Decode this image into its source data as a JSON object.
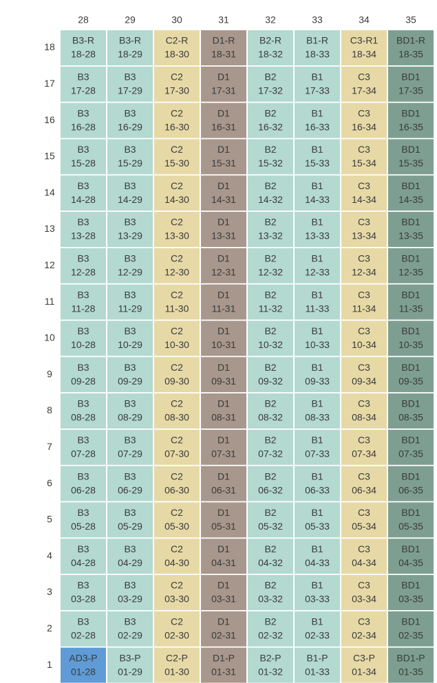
{
  "columns": [
    "28",
    "29",
    "30",
    "31",
    "32",
    "33",
    "34",
    "35"
  ],
  "column_colors": [
    "#b3d9d0",
    "#b3d9d0",
    "#e6d9a6",
    "#a8978c",
    "#b3d9d0",
    "#b3d9d0",
    "#e6d9a6",
    "#7e9e92"
  ],
  "rows": [
    {
      "label": "18",
      "cells": [
        [
          "B3-R",
          "18-28"
        ],
        [
          "B3-R",
          "18-29"
        ],
        [
          "C2-R",
          "18-30"
        ],
        [
          "D1-R",
          "18-31"
        ],
        [
          "B2-R",
          "18-32"
        ],
        [
          "B1-R",
          "18-33"
        ],
        [
          "C3-R1",
          "18-34"
        ],
        [
          "BD1-R",
          "18-35"
        ]
      ]
    },
    {
      "label": "17",
      "cells": [
        [
          "B3",
          "17-28"
        ],
        [
          "B3",
          "17-29"
        ],
        [
          "C2",
          "17-30"
        ],
        [
          "D1",
          "17-31"
        ],
        [
          "B2",
          "17-32"
        ],
        [
          "B1",
          "17-33"
        ],
        [
          "C3",
          "17-34"
        ],
        [
          "BD1",
          "17-35"
        ]
      ]
    },
    {
      "label": "16",
      "cells": [
        [
          "B3",
          "16-28"
        ],
        [
          "B3",
          "16-29"
        ],
        [
          "C2",
          "16-30"
        ],
        [
          "D1",
          "16-31"
        ],
        [
          "B2",
          "16-32"
        ],
        [
          "B1",
          "16-33"
        ],
        [
          "C3",
          "16-34"
        ],
        [
          "BD1",
          "16-35"
        ]
      ]
    },
    {
      "label": "15",
      "cells": [
        [
          "B3",
          "15-28"
        ],
        [
          "B3",
          "15-29"
        ],
        [
          "C2",
          "15-30"
        ],
        [
          "D1",
          "15-31"
        ],
        [
          "B2",
          "15-32"
        ],
        [
          "B1",
          "15-33"
        ],
        [
          "C3",
          "15-34"
        ],
        [
          "BD1",
          "15-35"
        ]
      ]
    },
    {
      "label": "14",
      "cells": [
        [
          "B3",
          "14-28"
        ],
        [
          "B3",
          "14-29"
        ],
        [
          "C2",
          "14-30"
        ],
        [
          "D1",
          "14-31"
        ],
        [
          "B2",
          "14-32"
        ],
        [
          "B1",
          "14-33"
        ],
        [
          "C3",
          "14-34"
        ],
        [
          "BD1",
          "14-35"
        ]
      ]
    },
    {
      "label": "13",
      "cells": [
        [
          "B3",
          "13-28"
        ],
        [
          "B3",
          "13-29"
        ],
        [
          "C2",
          "13-30"
        ],
        [
          "D1",
          "13-31"
        ],
        [
          "B2",
          "13-32"
        ],
        [
          "B1",
          "13-33"
        ],
        [
          "C3",
          "13-34"
        ],
        [
          "BD1",
          "13-35"
        ]
      ]
    },
    {
      "label": "12",
      "cells": [
        [
          "B3",
          "12-28"
        ],
        [
          "B3",
          "12-29"
        ],
        [
          "C2",
          "12-30"
        ],
        [
          "D1",
          "12-31"
        ],
        [
          "B2",
          "12-32"
        ],
        [
          "B1",
          "12-33"
        ],
        [
          "C3",
          "12-34"
        ],
        [
          "BD1",
          "12-35"
        ]
      ]
    },
    {
      "label": "11",
      "cells": [
        [
          "B3",
          "11-28"
        ],
        [
          "B3",
          "11-29"
        ],
        [
          "C2",
          "11-30"
        ],
        [
          "D1",
          "11-31"
        ],
        [
          "B2",
          "11-32"
        ],
        [
          "B1",
          "11-33"
        ],
        [
          "C3",
          "11-34"
        ],
        [
          "BD1",
          "11-35"
        ]
      ]
    },
    {
      "label": "10",
      "cells": [
        [
          "B3",
          "10-28"
        ],
        [
          "B3",
          "10-29"
        ],
        [
          "C2",
          "10-30"
        ],
        [
          "D1",
          "10-31"
        ],
        [
          "B2",
          "10-32"
        ],
        [
          "B1",
          "10-33"
        ],
        [
          "C3",
          "10-34"
        ],
        [
          "BD1",
          "10-35"
        ]
      ]
    },
    {
      "label": "9",
      "cells": [
        [
          "B3",
          "09-28"
        ],
        [
          "B3",
          "09-29"
        ],
        [
          "C2",
          "09-30"
        ],
        [
          "D1",
          "09-31"
        ],
        [
          "B2",
          "09-32"
        ],
        [
          "B1",
          "09-33"
        ],
        [
          "C3",
          "09-34"
        ],
        [
          "BD1",
          "09-35"
        ]
      ]
    },
    {
      "label": "8",
      "cells": [
        [
          "B3",
          "08-28"
        ],
        [
          "B3",
          "08-29"
        ],
        [
          "C2",
          "08-30"
        ],
        [
          "D1",
          "08-31"
        ],
        [
          "B2",
          "08-32"
        ],
        [
          "B1",
          "08-33"
        ],
        [
          "C3",
          "08-34"
        ],
        [
          "BD1",
          "08-35"
        ]
      ]
    },
    {
      "label": "7",
      "cells": [
        [
          "B3",
          "07-28"
        ],
        [
          "B3",
          "07-29"
        ],
        [
          "C2",
          "07-30"
        ],
        [
          "D1",
          "07-31"
        ],
        [
          "B2",
          "07-32"
        ],
        [
          "B1",
          "07-33"
        ],
        [
          "C3",
          "07-34"
        ],
        [
          "BD1",
          "07-35"
        ]
      ]
    },
    {
      "label": "6",
      "cells": [
        [
          "B3",
          "06-28"
        ],
        [
          "B3",
          "06-29"
        ],
        [
          "C2",
          "06-30"
        ],
        [
          "D1",
          "06-31"
        ],
        [
          "B2",
          "06-32"
        ],
        [
          "B1",
          "06-33"
        ],
        [
          "C3",
          "06-34"
        ],
        [
          "BD1",
          "06-35"
        ]
      ]
    },
    {
      "label": "5",
      "cells": [
        [
          "B3",
          "05-28"
        ],
        [
          "B3",
          "05-29"
        ],
        [
          "C2",
          "05-30"
        ],
        [
          "D1",
          "05-31"
        ],
        [
          "B2",
          "05-32"
        ],
        [
          "B1",
          "05-33"
        ],
        [
          "C3",
          "05-34"
        ],
        [
          "BD1",
          "05-35"
        ]
      ]
    },
    {
      "label": "4",
      "cells": [
        [
          "B3",
          "04-28"
        ],
        [
          "B3",
          "04-29"
        ],
        [
          "C2",
          "04-30"
        ],
        [
          "D1",
          "04-31"
        ],
        [
          "B2",
          "04-32"
        ],
        [
          "B1",
          "04-33"
        ],
        [
          "C3",
          "04-34"
        ],
        [
          "BD1",
          "04-35"
        ]
      ]
    },
    {
      "label": "3",
      "cells": [
        [
          "B3",
          "03-28"
        ],
        [
          "B3",
          "03-29"
        ],
        [
          "C2",
          "03-30"
        ],
        [
          "D1",
          "03-31"
        ],
        [
          "B2",
          "03-32"
        ],
        [
          "B1",
          "03-33"
        ],
        [
          "C3",
          "03-34"
        ],
        [
          "BD1",
          "03-35"
        ]
      ]
    },
    {
      "label": "2",
      "cells": [
        [
          "B3",
          "02-28"
        ],
        [
          "B3",
          "02-29"
        ],
        [
          "C2",
          "02-30"
        ],
        [
          "D1",
          "02-31"
        ],
        [
          "B2",
          "02-32"
        ],
        [
          "B1",
          "02-33"
        ],
        [
          "C3",
          "02-34"
        ],
        [
          "BD1",
          "02-35"
        ]
      ]
    },
    {
      "label": "1",
      "cells": [
        [
          "AD3-P",
          "01-28",
          "#5f9bd6"
        ],
        [
          "B3-P",
          "01-29"
        ],
        [
          "C2-P",
          "01-30"
        ],
        [
          "D1-P",
          "01-31"
        ],
        [
          "B2-P",
          "01-32"
        ],
        [
          "B1-P",
          "01-33"
        ],
        [
          "C3-P",
          "01-34"
        ],
        [
          "BD1-P",
          "01-35"
        ]
      ]
    }
  ]
}
